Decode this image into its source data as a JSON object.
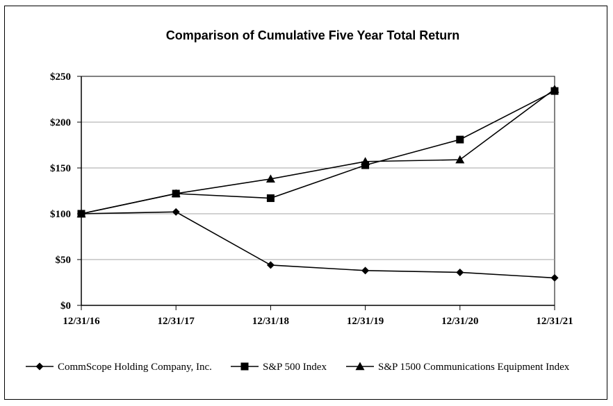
{
  "chart_data": {
    "type": "line",
    "title": "Comparison of Cumulative Five Year Total Return",
    "xlabel": "",
    "ylabel": "",
    "categories": [
      "12/31/16",
      "12/31/17",
      "12/31/18",
      "12/31/19",
      "12/31/20",
      "12/31/21"
    ],
    "yticks": [
      "$0",
      "$50",
      "$100",
      "$150",
      "$200",
      "$250"
    ],
    "ylim": [
      0,
      250
    ],
    "grid": true,
    "legend_position": "bottom",
    "series": [
      {
        "name": "CommScope Holding Company, Inc.",
        "marker": "diamond",
        "color": "#000000",
        "values": [
          100,
          102,
          44,
          38,
          36,
          30
        ]
      },
      {
        "name": "S&P 500 Index",
        "marker": "square",
        "color": "#000000",
        "values": [
          100,
          122,
          117,
          153,
          181,
          234
        ]
      },
      {
        "name": "S&P 1500 Communications Equipment Index",
        "marker": "triangle",
        "color": "#000000",
        "values": [
          100,
          122,
          138,
          157,
          159,
          236
        ]
      }
    ]
  }
}
